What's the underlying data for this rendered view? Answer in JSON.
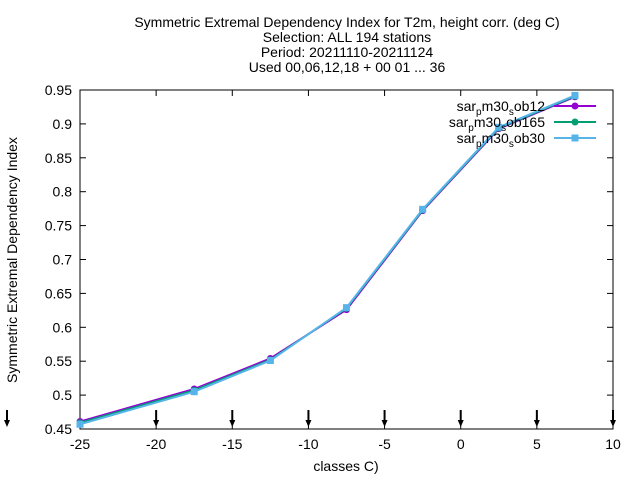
{
  "chart_data": {
    "type": "line",
    "title": "Symmetric Extremal Dependency Index  for T2m, height corr. (deg C)",
    "subtitle_lines": [
      "Selection: ALL    194 stations",
      "Period: 20211110-20211124",
      "Used 00,06,12,18 + 00 01 ... 36"
    ],
    "xlabel": "classes C)",
    "ylabel": "Symmetric Extremal Dependency Index",
    "xlim": [
      -25,
      10
    ],
    "ylim": [
      0.45,
      0.95
    ],
    "xticks": [
      -25,
      -20,
      -15,
      -10,
      -5,
      0,
      5,
      10
    ],
    "yticks": [
      0.45,
      0.5,
      0.55,
      0.6,
      0.65,
      0.7,
      0.75,
      0.8,
      0.85,
      0.9,
      0.95
    ],
    "grid": false,
    "legend_position": "top-right",
    "x": [
      -25,
      -17.5,
      -12.5,
      -7.5,
      -2.5,
      2.5,
      7.5
    ],
    "series": [
      {
        "name": "sar_pm30_sob12",
        "label_parts": [
          "sar",
          "p",
          "m30",
          "s",
          "ob12"
        ],
        "color": "#9400d3",
        "marker": "circle",
        "values": [
          0.461,
          0.509,
          0.554,
          0.626,
          0.772,
          0.893,
          0.94
        ]
      },
      {
        "name": "sar_pm30_sob165",
        "label_parts": [
          "sar",
          "p",
          "m30",
          "s",
          "ob165"
        ],
        "color": "#009e73",
        "marker": "circle",
        "values": [
          0.459,
          0.507,
          0.552,
          0.628,
          0.773,
          0.894,
          0.941
        ]
      },
      {
        "name": "sar_pm30_sob30",
        "label_parts": [
          "sar",
          "p",
          "m30",
          "s",
          "ob30"
        ],
        "color": "#56b4e9",
        "marker": "square",
        "values": [
          0.457,
          0.505,
          0.551,
          0.629,
          0.774,
          0.895,
          0.942
        ]
      }
    ],
    "bottom_marker_x": [
      -25,
      -20,
      -15,
      -10,
      -5,
      0,
      5,
      10
    ],
    "bottom_marker_symbol": "↓"
  }
}
